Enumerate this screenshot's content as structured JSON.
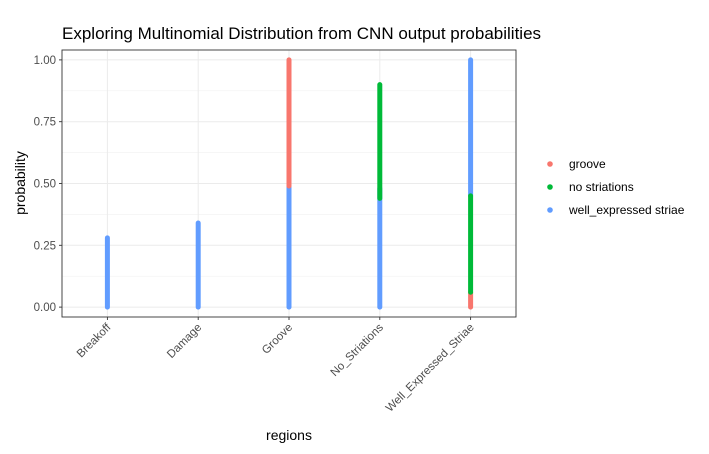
{
  "chart_data": {
    "type": "scatter",
    "title": "Exploring Multinomial Distribution from CNN output probabilities",
    "xlabel": "regions",
    "ylabel": "probability",
    "categories": [
      "Breakoff",
      "Damage",
      "Groove",
      "No_Striations",
      "Well_Expressed_Striae"
    ],
    "ylim": [
      -0.04,
      1.04
    ],
    "yticks": [
      0.0,
      0.25,
      0.5,
      0.75,
      1.0
    ],
    "ytick_labels": [
      "0.00",
      "0.25",
      "0.50",
      "0.75",
      "1.00"
    ],
    "grid": true,
    "legend_position": "right",
    "series": [
      {
        "name": "groove",
        "color": "#F8766D",
        "ranges": [
          [
            null,
            null
          ],
          [
            null,
            null
          ],
          [
            0.49,
            1.0
          ],
          [
            null,
            null
          ],
          [
            0.0,
            0.06
          ]
        ]
      },
      {
        "name": "no striations",
        "color": "#00BA38",
        "ranges": [
          [
            null,
            null
          ],
          [
            null,
            null
          ],
          [
            null,
            null
          ],
          [
            0.44,
            0.9
          ],
          [
            0.06,
            0.45
          ]
        ]
      },
      {
        "name": "well_expressed striae",
        "color": "#619CFF",
        "ranges": [
          [
            0.0,
            0.28
          ],
          [
            0.0,
            0.34
          ],
          [
            0.0,
            0.49
          ],
          [
            0.0,
            0.48
          ],
          [
            0.45,
            1.0
          ]
        ]
      }
    ]
  }
}
